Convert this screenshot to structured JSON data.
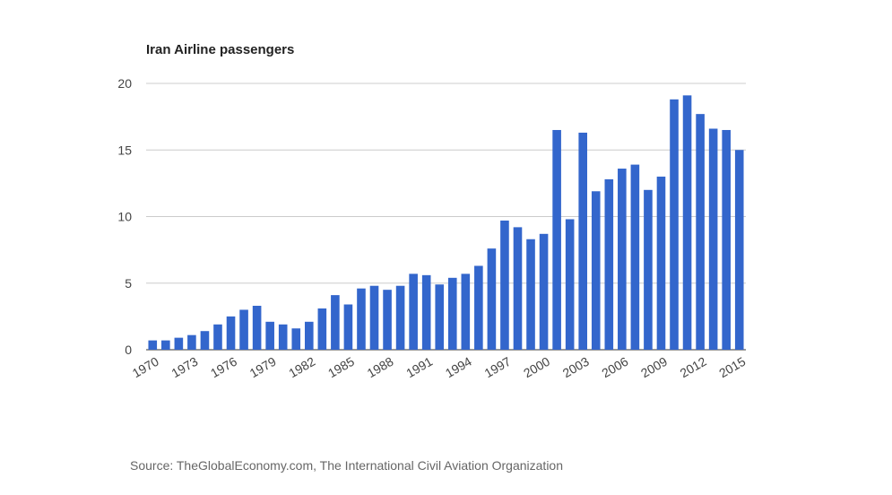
{
  "chart_data": {
    "type": "bar",
    "title": "Iran Airline passengers",
    "source": "Source: TheGlobalEconomy.com, The International Civil Aviation Organization",
    "categories": [
      "1970",
      null,
      null,
      "1973",
      null,
      null,
      "1976",
      null,
      null,
      "1979",
      null,
      null,
      "1982",
      null,
      null,
      "1985",
      null,
      null,
      "1988",
      null,
      null,
      "1991",
      null,
      null,
      "1994",
      null,
      null,
      "1997",
      null,
      null,
      "2000",
      null,
      null,
      "2003",
      null,
      null,
      "2006",
      null,
      null,
      "2009",
      null,
      null,
      "2012",
      null,
      null,
      "2015"
    ],
    "values": [
      0.7,
      0.7,
      0.9,
      1.1,
      1.4,
      1.9,
      2.5,
      3.0,
      3.3,
      2.1,
      1.9,
      1.6,
      2.1,
      3.1,
      4.1,
      3.4,
      4.6,
      4.8,
      4.5,
      4.8,
      5.7,
      5.6,
      4.9,
      5.4,
      5.7,
      6.3,
      7.6,
      9.7,
      9.2,
      8.3,
      8.7,
      16.5,
      9.8,
      16.3,
      11.9,
      12.8,
      13.6,
      13.9,
      12.0,
      13.0,
      18.8,
      19.1,
      17.7,
      16.6,
      16.5,
      15.0
    ],
    "color": "#3366cc",
    "ylim": [
      0,
      20
    ],
    "yticks": [
      0,
      5,
      10,
      15,
      20
    ],
    "grid": true
  }
}
